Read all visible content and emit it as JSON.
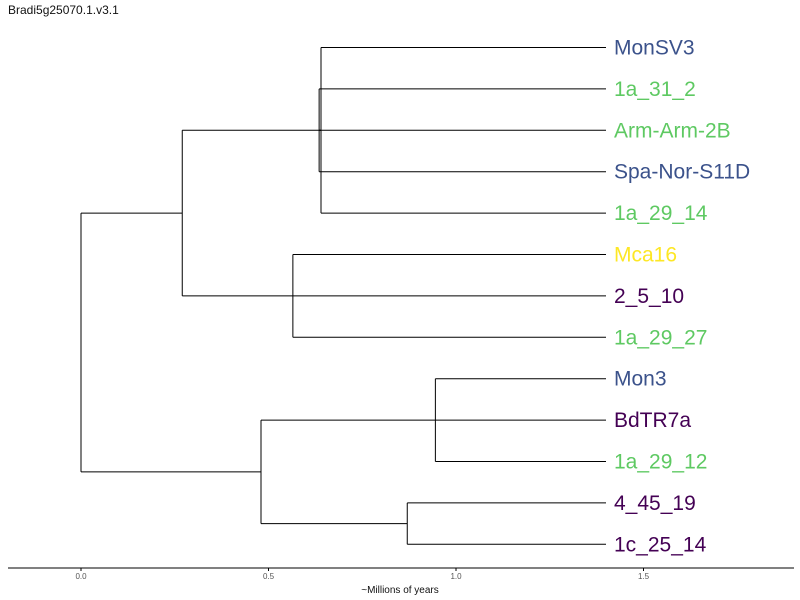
{
  "title": "Bradi5g25070.1.v3.1",
  "axis": {
    "label": "~Millions of years",
    "ticks": [
      {
        "value": 0.0,
        "label": "0.0"
      },
      {
        "value": 0.5,
        "label": "0.5"
      },
      {
        "value": 1.0,
        "label": "1.0"
      },
      {
        "value": 1.5,
        "label": "1.5"
      }
    ],
    "range": [
      -0.2,
      1.9
    ]
  },
  "colors": {
    "navy": "#3b528b",
    "green": "#5ec962",
    "yellow": "#fde725",
    "purple": "#440154",
    "branch": "#000000"
  },
  "leaves": [
    {
      "label": "MonSV3",
      "color": "#3b528b"
    },
    {
      "label": "1a_31_2",
      "color": "#5ec962"
    },
    {
      "label": "Arm-Arm-2B",
      "color": "#5ec962"
    },
    {
      "label": "Spa-Nor-S11D",
      "color": "#3b528b"
    },
    {
      "label": "1a_29_14",
      "color": "#5ec962"
    },
    {
      "label": "Mca16",
      "color": "#fde725"
    },
    {
      "label": "2_5_10",
      "color": "#440154"
    },
    {
      "label": "1a_29_27",
      "color": "#5ec962"
    },
    {
      "label": "Mon3",
      "color": "#3b528b"
    },
    {
      "label": "BdTR7a",
      "color": "#440154"
    },
    {
      "label": "1a_29_12",
      "color": "#5ec962"
    },
    {
      "label": "4_45_19",
      "color": "#440154"
    },
    {
      "label": "1c_25_14",
      "color": "#440154"
    }
  ],
  "tree": {
    "x": 0.0,
    "children": [
      {
        "x": 0.27,
        "children": [
          {
            "x": 0.64,
            "children": [
              {
                "leaf": 0
              },
              {
                "x": 0.635,
                "children": [
                  {
                    "leaf": 1
                  },
                  {
                    "leaf": 2
                  },
                  {
                    "leaf": 3
                  }
                ]
              },
              {
                "leaf": 4
              }
            ]
          },
          {
            "x": 0.565,
            "children": [
              {
                "leaf": 5
              },
              {
                "leaf": 6
              },
              {
                "leaf": 7
              }
            ]
          }
        ]
      },
      {
        "x": 0.48,
        "children": [
          {
            "x": 0.945,
            "children": [
              {
                "leaf": 8
              },
              {
                "leaf": 9
              },
              {
                "leaf": 10
              }
            ]
          },
          {
            "x": 0.87,
            "children": [
              {
                "leaf": 11
              },
              {
                "leaf": 12
              }
            ]
          }
        ]
      }
    ]
  },
  "leaf_tip_x": 1.4
}
